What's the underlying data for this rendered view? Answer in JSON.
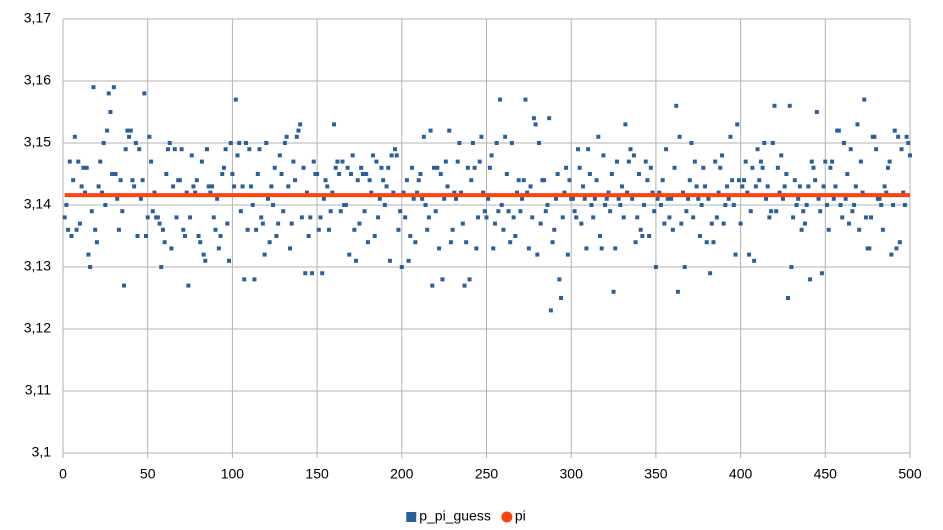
{
  "chart_data": {
    "type": "scatter",
    "xlim": [
      0,
      500
    ],
    "xticks": [
      0,
      50,
      100,
      150,
      200,
      250,
      300,
      350,
      400,
      450,
      500
    ],
    "ylim": [
      3.1,
      3.17
    ],
    "yticks": [
      {
        "value": 3.1,
        "label": "3,1"
      },
      {
        "value": 3.11,
        "label": "3,11"
      },
      {
        "value": 3.12,
        "label": "3,12"
      },
      {
        "value": 3.13,
        "label": "3,13"
      },
      {
        "value": 3.14,
        "label": "3,14"
      },
      {
        "value": 3.15,
        "label": "3,15"
      },
      {
        "value": 3.16,
        "label": "3,16"
      },
      {
        "value": 3.17,
        "label": "3,17"
      }
    ],
    "grid": true,
    "legend": "bottom",
    "series": [
      {
        "name": "p_pi_guess",
        "color": "#2a6099",
        "marker": "square",
        "x": [
          1,
          2,
          3,
          4,
          5,
          6,
          7,
          8,
          9,
          10,
          11,
          12,
          13,
          14,
          15,
          16,
          17,
          18,
          19,
          20,
          21,
          22,
          23,
          24,
          25,
          26,
          27,
          28,
          29,
          30,
          31,
          32,
          33,
          34,
          35,
          36,
          37,
          38,
          39,
          40,
          41,
          42,
          43,
          44,
          45,
          46,
          47,
          48,
          49,
          50,
          51,
          52,
          53,
          54,
          55,
          56,
          57,
          58,
          59,
          60,
          61,
          62,
          63,
          64,
          65,
          66,
          67,
          68,
          69,
          70,
          71,
          72,
          73,
          74,
          75,
          76,
          77,
          78,
          79,
          80,
          81,
          82,
          83,
          84,
          85,
          86,
          87,
          88,
          89,
          90,
          91,
          92,
          93,
          94,
          95,
          96,
          97,
          98,
          99,
          100,
          101,
          102,
          103,
          104,
          105,
          106,
          107,
          108,
          109,
          110,
          111,
          112,
          113,
          114,
          115,
          116,
          117,
          118,
          119,
          120,
          121,
          122,
          123,
          124,
          125,
          126,
          127,
          128,
          129,
          130,
          131,
          132,
          133,
          134,
          135,
          136,
          137,
          138,
          139,
          140,
          141,
          142,
          143,
          144,
          145,
          146,
          147,
          148,
          149,
          150,
          151,
          152,
          153,
          154,
          155,
          156,
          157,
          158,
          159,
          160,
          161,
          162,
          163,
          164,
          165,
          166,
          167,
          168,
          169,
          170,
          171,
          172,
          173,
          174,
          175,
          176,
          177,
          178,
          179,
          180,
          181,
          182,
          183,
          184,
          185,
          186,
          187,
          188,
          189,
          190,
          191,
          192,
          193,
          194,
          195,
          196,
          197,
          198,
          199,
          200,
          201,
          202,
          203,
          204,
          205,
          206,
          207,
          208,
          209,
          210,
          211,
          212,
          213,
          214,
          215,
          216,
          217,
          218,
          219,
          220,
          221,
          222,
          223,
          224,
          225,
          226,
          227,
          228,
          229,
          230,
          231,
          232,
          233,
          234,
          235,
          236,
          237,
          238,
          239,
          240,
          241,
          242,
          243,
          244,
          245,
          246,
          247,
          248,
          249,
          250,
          251,
          252,
          253,
          254,
          255,
          256,
          257,
          258,
          259,
          260,
          261,
          262,
          263,
          264,
          265,
          266,
          267,
          268,
          269,
          270,
          271,
          272,
          273,
          274,
          275,
          276,
          277,
          278,
          279,
          280,
          281,
          282,
          283,
          284,
          285,
          286,
          287,
          288,
          289,
          290,
          291,
          292,
          293,
          294,
          295,
          296,
          297,
          298,
          299,
          300,
          301,
          302,
          303,
          304,
          305,
          306,
          307,
          308,
          309,
          310,
          311,
          312,
          313,
          314,
          315,
          316,
          317,
          318,
          319,
          320,
          321,
          322,
          323,
          324,
          325,
          326,
          327,
          328,
          329,
          330,
          331,
          332,
          333,
          334,
          335,
          336,
          337,
          338,
          339,
          340,
          341,
          342,
          343,
          344,
          345,
          346,
          347,
          348,
          349,
          350,
          351,
          352,
          353,
          354,
          355,
          356,
          357,
          358,
          359,
          360,
          361,
          362,
          363,
          364,
          365,
          366,
          367,
          368,
          369,
          370,
          371,
          372,
          373,
          374,
          375,
          376,
          377,
          378,
          379,
          380,
          381,
          382,
          383,
          384,
          385,
          386,
          387,
          388,
          389,
          390,
          391,
          392,
          393,
          394,
          395,
          396,
          397,
          398,
          399,
          400,
          401,
          402,
          403,
          404,
          405,
          406,
          407,
          408,
          409,
          410,
          411,
          412,
          413,
          414,
          415,
          416,
          417,
          418,
          419,
          420,
          421,
          422,
          423,
          424,
          425,
          426,
          427,
          428,
          429,
          430,
          431,
          432,
          433,
          434,
          435,
          436,
          437,
          438,
          439,
          440,
          441,
          442,
          443,
          444,
          445,
          446,
          447,
          448,
          449,
          450,
          451,
          452,
          453,
          454,
          455,
          456,
          457,
          458,
          459,
          460,
          461,
          462,
          463,
          464,
          465,
          466,
          467,
          468,
          469,
          470,
          471,
          472,
          473,
          474,
          475,
          476,
          477,
          478,
          479,
          480,
          481,
          482,
          483,
          484,
          485,
          486,
          487,
          488,
          489,
          490,
          491,
          492,
          493,
          494,
          495,
          496,
          497,
          498,
          499,
          500
        ],
        "values": [
          3.138,
          3.14,
          3.136,
          3.147,
          3.135,
          3.144,
          3.151,
          3.136,
          3.147,
          3.137,
          3.143,
          3.146,
          3.142,
          3.146,
          3.132,
          3.13,
          3.139,
          3.159,
          3.136,
          3.134,
          3.143,
          3.147,
          3.142,
          3.15,
          3.14,
          3.152,
          3.158,
          3.155,
          3.145,
          3.159,
          3.145,
          3.141,
          3.136,
          3.144,
          3.139,
          3.127,
          3.149,
          3.152,
          3.151,
          3.152,
          3.144,
          3.143,
          3.15,
          3.135,
          3.149,
          3.141,
          3.144,
          3.158,
          3.135,
          3.138,
          3.151,
          3.147,
          3.139,
          3.142,
          3.138,
          3.138,
          3.137,
          3.13,
          3.136,
          3.134,
          3.145,
          3.149,
          3.15,
          3.133,
          3.143,
          3.149,
          3.138,
          3.144,
          3.144,
          3.149,
          3.136,
          3.135,
          3.142,
          3.127,
          3.138,
          3.148,
          3.143,
          3.142,
          3.144,
          3.135,
          3.134,
          3.147,
          3.132,
          3.131,
          3.149,
          3.143,
          3.142,
          3.143,
          3.138,
          3.136,
          3.141,
          3.133,
          3.135,
          3.145,
          3.146,
          3.149,
          3.137,
          3.131,
          3.15,
          3.145,
          3.143,
          3.157,
          3.148,
          3.15,
          3.139,
          3.143,
          3.128,
          3.15,
          3.136,
          3.149,
          3.143,
          3.14,
          3.128,
          3.136,
          3.145,
          3.149,
          3.138,
          3.137,
          3.132,
          3.15,
          3.141,
          3.134,
          3.143,
          3.14,
          3.146,
          3.135,
          3.137,
          3.148,
          3.145,
          3.139,
          3.15,
          3.151,
          3.143,
          3.133,
          3.137,
          3.147,
          3.144,
          3.151,
          3.152,
          3.153,
          3.138,
          3.146,
          3.129,
          3.142,
          3.135,
          3.138,
          3.129,
          3.147,
          3.145,
          3.145,
          3.136,
          3.138,
          3.129,
          3.141,
          3.144,
          3.143,
          3.136,
          3.139,
          3.142,
          3.153,
          3.146,
          3.147,
          3.145,
          3.139,
          3.147,
          3.14,
          3.14,
          3.146,
          3.132,
          3.145,
          3.148,
          3.136,
          3.131,
          3.144,
          3.137,
          3.146,
          3.145,
          3.139,
          3.145,
          3.134,
          3.144,
          3.142,
          3.148,
          3.135,
          3.147,
          3.138,
          3.141,
          3.146,
          3.144,
          3.14,
          3.143,
          3.146,
          3.131,
          3.148,
          3.142,
          3.149,
          3.148,
          3.136,
          3.139,
          3.13,
          3.142,
          3.138,
          3.144,
          3.131,
          3.135,
          3.146,
          3.141,
          3.134,
          3.142,
          3.144,
          3.145,
          3.141,
          3.151,
          3.14,
          3.136,
          3.138,
          3.152,
          3.127,
          3.146,
          3.139,
          3.146,
          3.133,
          3.145,
          3.128,
          3.141,
          3.147,
          3.143,
          3.152,
          3.134,
          3.136,
          3.142,
          3.141,
          3.147,
          3.15,
          3.142,
          3.137,
          3.127,
          3.134,
          3.146,
          3.128,
          3.144,
          3.15,
          3.146,
          3.133,
          3.138,
          3.147,
          3.151,
          3.142,
          3.139,
          3.138,
          3.141,
          3.146,
          3.148,
          3.133,
          3.137,
          3.15,
          3.139,
          3.157,
          3.14,
          3.136,
          3.151,
          3.145,
          3.139,
          3.134,
          3.15,
          3.138,
          3.135,
          3.142,
          3.144,
          3.139,
          3.141,
          3.144,
          3.157,
          3.142,
          3.133,
          3.143,
          3.138,
          3.154,
          3.153,
          3.132,
          3.15,
          3.137,
          3.144,
          3.144,
          3.139,
          3.14,
          3.154,
          3.123,
          3.134,
          3.136,
          3.141,
          3.145,
          3.128,
          3.125,
          3.138,
          3.142,
          3.146,
          3.132,
          3.144,
          3.141,
          3.141,
          3.139,
          3.138,
          3.149,
          3.146,
          3.137,
          3.143,
          3.141,
          3.133,
          3.149,
          3.145,
          3.14,
          3.138,
          3.141,
          3.144,
          3.151,
          3.135,
          3.133,
          3.148,
          3.14,
          3.141,
          3.142,
          3.139,
          3.145,
          3.126,
          3.133,
          3.147,
          3.141,
          3.14,
          3.143,
          3.138,
          3.153,
          3.142,
          3.147,
          3.149,
          3.141,
          3.148,
          3.134,
          3.138,
          3.145,
          3.136,
          3.135,
          3.14,
          3.147,
          3.144,
          3.135,
          3.146,
          3.142,
          3.139,
          3.13,
          3.141,
          3.142,
          3.14,
          3.144,
          3.137,
          3.149,
          3.141,
          3.138,
          3.141,
          3.136,
          3.146,
          3.156,
          3.126,
          3.151,
          3.137,
          3.142,
          3.13,
          3.139,
          3.141,
          3.144,
          3.15,
          3.138,
          3.147,
          3.143,
          3.141,
          3.135,
          3.14,
          3.146,
          3.143,
          3.134,
          3.141,
          3.129,
          3.137,
          3.134,
          3.147,
          3.138,
          3.142,
          3.146,
          3.148,
          3.137,
          3.14,
          3.143,
          3.141,
          3.151,
          3.144,
          3.14,
          3.132,
          3.153,
          3.144,
          3.137,
          3.143,
          3.144,
          3.147,
          3.142,
          3.132,
          3.139,
          3.146,
          3.131,
          3.143,
          3.149,
          3.144,
          3.147,
          3.146,
          3.15,
          3.141,
          3.143,
          3.138,
          3.139,
          3.15,
          3.156,
          3.139,
          3.146,
          3.142,
          3.148,
          3.141,
          3.143,
          3.145,
          3.125,
          3.156,
          3.13,
          3.138,
          3.144,
          3.14,
          3.141,
          3.143,
          3.136,
          3.139,
          3.137,
          3.14,
          3.143,
          3.128,
          3.147,
          3.146,
          3.144,
          3.155,
          3.141,
          3.139,
          3.129,
          3.143,
          3.147,
          3.14,
          3.136,
          3.146,
          3.147,
          3.141,
          3.143,
          3.152,
          3.152,
          3.14,
          3.138,
          3.15,
          3.141,
          3.145,
          3.137,
          3.149,
          3.139,
          3.14,
          3.143,
          3.153,
          3.136,
          3.147,
          3.142,
          3.157,
          3.138,
          3.133,
          3.133,
          3.138,
          3.151,
          3.151,
          3.149,
          3.141,
          3.141,
          3.14,
          3.136,
          3.143,
          3.142,
          3.146,
          3.147,
          3.132,
          3.14,
          3.152,
          3.133,
          3.151,
          3.134,
          3.149,
          3.142,
          3.14,
          3.151,
          3.15,
          3.148
        ]
      },
      {
        "name": "pi",
        "color": "#ff420e",
        "marker": "circle",
        "line": true,
        "x": [
          1,
          500
        ],
        "values": [
          3.14159,
          3.14159
        ]
      }
    ]
  }
}
